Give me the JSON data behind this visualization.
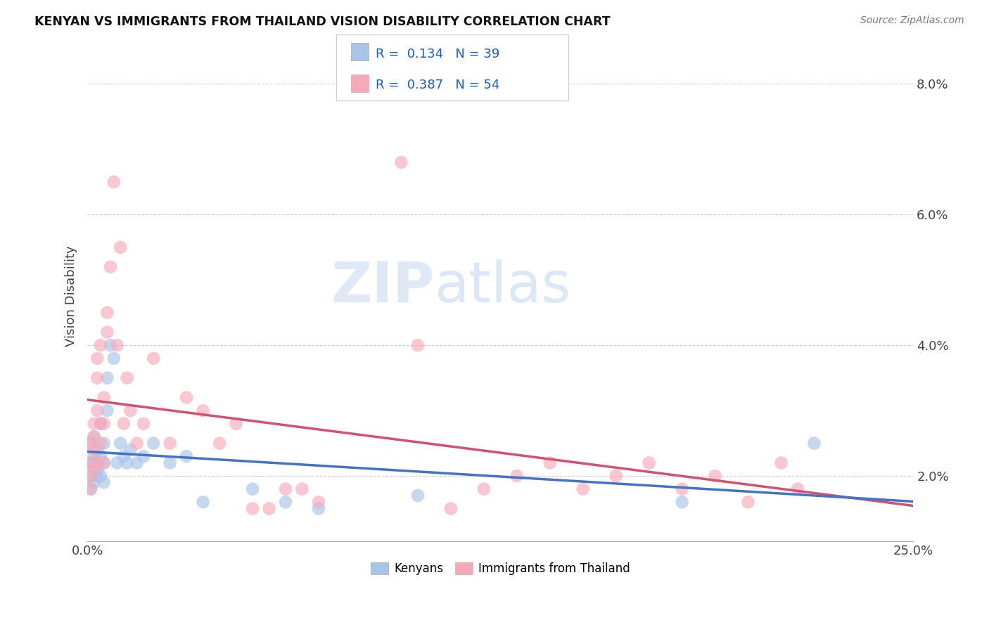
{
  "title": "KENYAN VS IMMIGRANTS FROM THAILAND VISION DISABILITY CORRELATION CHART",
  "source": "Source: ZipAtlas.com",
  "ylabel": "Vision Disability",
  "watermark_zip": "ZIP",
  "watermark_atlas": "atlas",
  "r_kenyan": 0.134,
  "n_kenyan": 39,
  "r_thailand": 0.387,
  "n_thailand": 54,
  "xlim": [
    0.0,
    0.25
  ],
  "ylim": [
    0.01,
    0.085
  ],
  "yticks": [
    0.02,
    0.04,
    0.06,
    0.08
  ],
  "ytick_labels": [
    "2.0%",
    "4.0%",
    "6.0%",
    "8.0%"
  ],
  "xticks": [
    0.0,
    0.25
  ],
  "xtick_labels": [
    "0.0%",
    "25.0%"
  ],
  "legend_labels": [
    "Kenyans",
    "Immigrants from Thailand"
  ],
  "kenyan_color": "#a8c4e8",
  "thailand_color": "#f5aabb",
  "kenyan_line_color": "#4472c4",
  "thailand_line_color": "#d45070",
  "background_color": "#ffffff",
  "grid_color": "#c8c8c8",
  "kenyan_x": [
    0.001,
    0.001,
    0.001,
    0.001,
    0.002,
    0.002,
    0.002,
    0.002,
    0.003,
    0.003,
    0.003,
    0.003,
    0.004,
    0.004,
    0.004,
    0.005,
    0.005,
    0.005,
    0.006,
    0.006,
    0.007,
    0.008,
    0.009,
    0.01,
    0.011,
    0.012,
    0.013,
    0.015,
    0.017,
    0.02,
    0.025,
    0.03,
    0.035,
    0.05,
    0.06,
    0.07,
    0.1,
    0.18,
    0.22
  ],
  "kenyan_y": [
    0.022,
    0.02,
    0.018,
    0.025,
    0.022,
    0.019,
    0.023,
    0.026,
    0.022,
    0.02,
    0.024,
    0.021,
    0.028,
    0.023,
    0.02,
    0.025,
    0.022,
    0.019,
    0.035,
    0.03,
    0.04,
    0.038,
    0.022,
    0.025,
    0.023,
    0.022,
    0.024,
    0.022,
    0.023,
    0.025,
    0.022,
    0.023,
    0.016,
    0.018,
    0.016,
    0.015,
    0.017,
    0.016,
    0.025
  ],
  "thailand_x": [
    0.001,
    0.001,
    0.001,
    0.001,
    0.002,
    0.002,
    0.002,
    0.002,
    0.003,
    0.003,
    0.003,
    0.003,
    0.004,
    0.004,
    0.004,
    0.005,
    0.005,
    0.005,
    0.006,
    0.006,
    0.007,
    0.008,
    0.009,
    0.01,
    0.011,
    0.012,
    0.013,
    0.015,
    0.017,
    0.02,
    0.025,
    0.03,
    0.035,
    0.05,
    0.06,
    0.07,
    0.095,
    0.1,
    0.11,
    0.12,
    0.13,
    0.14,
    0.15,
    0.16,
    0.17,
    0.18,
    0.19,
    0.2,
    0.21,
    0.215,
    0.04,
    0.045,
    0.055,
    0.065
  ],
  "thailand_y": [
    0.022,
    0.025,
    0.02,
    0.018,
    0.024,
    0.021,
    0.028,
    0.026,
    0.03,
    0.022,
    0.035,
    0.038,
    0.04,
    0.028,
    0.025,
    0.032,
    0.028,
    0.022,
    0.045,
    0.042,
    0.052,
    0.065,
    0.04,
    0.055,
    0.028,
    0.035,
    0.03,
    0.025,
    0.028,
    0.038,
    0.025,
    0.032,
    0.03,
    0.015,
    0.018,
    0.016,
    0.068,
    0.04,
    0.015,
    0.018,
    0.02,
    0.022,
    0.018,
    0.02,
    0.022,
    0.018,
    0.02,
    0.016,
    0.022,
    0.018,
    0.025,
    0.028,
    0.015,
    0.018
  ]
}
